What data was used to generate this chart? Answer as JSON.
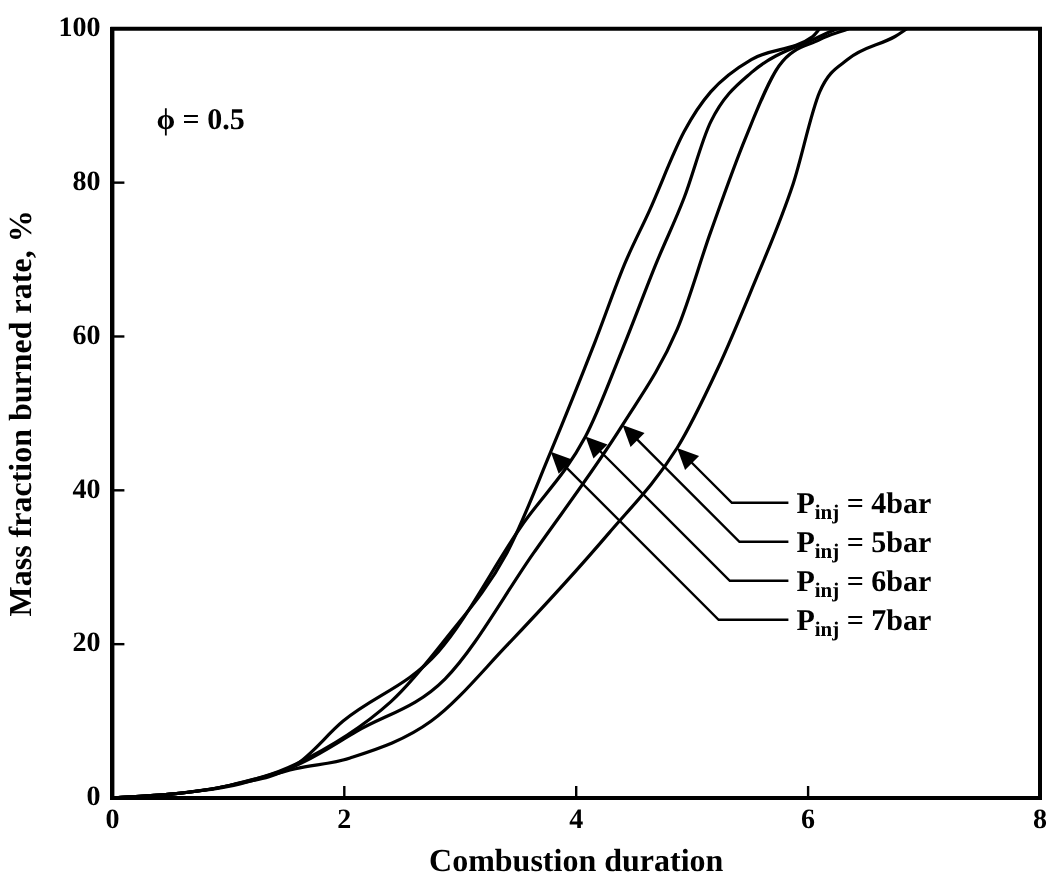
{
  "chart_data": {
    "type": "line",
    "xlabel": "Combustion duration",
    "ylabel": "Mass fraction burned rate, %",
    "xlim": [
      0,
      8
    ],
    "xticks": [
      0,
      2,
      4,
      6,
      8
    ],
    "ylim": [
      0,
      100
    ],
    "yticks": [
      0,
      20,
      40,
      60,
      80,
      100
    ],
    "grid": false,
    "legend": false,
    "marker": "none",
    "line_style": "solid",
    "series": [
      {
        "color": "#000000",
        "x": [
          0,
          0.5,
          1,
          1.58,
          2.05,
          2.75,
          3.4,
          4.28,
          4.87,
          5.22,
          5.51,
          5.87,
          6.1,
          6.34,
          6.75,
          6.85
        ],
        "values": [
          0,
          0.5,
          1.5,
          3.8,
          5.2,
          10,
          19.8,
          34.4,
          45.5,
          55.8,
          66,
          79.8,
          91.8,
          96,
          99,
          100
        ]
      },
      {
        "color": "#000000",
        "x": [
          0,
          0.5,
          1,
          1.58,
          2.11,
          2.87,
          3.63,
          4.4,
          4.87,
          5.16,
          5.46,
          5.75,
          6.1,
          6.35
        ],
        "values": [
          0,
          0.5,
          1.6,
          4.2,
          8.7,
          15.5,
          31.8,
          48.5,
          60.9,
          73.6,
          85.8,
          95.2,
          98.6,
          100
        ]
      },
      {
        "color": "#000000",
        "x": [
          0,
          0.5,
          1,
          1.58,
          1.99,
          2.81,
          3.52,
          4.08,
          4.4,
          4.69,
          4.93,
          5.16,
          5.51,
          6.1,
          6.25
        ],
        "values": [
          0,
          0.5,
          1.6,
          4.3,
          10,
          19,
          35.2,
          47,
          58.4,
          69.5,
          78,
          87.9,
          94.3,
          99,
          100
        ]
      },
      {
        "color": "#000000",
        "x": [
          0,
          0.5,
          1,
          1.58,
          2.4,
          2.87,
          3.4,
          3.78,
          4.16,
          4.42,
          4.63,
          4.93,
          5.16,
          5.51,
          6.04,
          6.1
        ],
        "values": [
          0,
          0.5,
          1.6,
          4.4,
          12.5,
          20.6,
          31.8,
          45,
          59.2,
          69.5,
          76.3,
          86.6,
          91.8,
          96,
          99,
          100
        ]
      }
    ],
    "annotations": [
      "ϕ = 0.5",
      {
        "text": "P$_{inj}$ = 4bar",
        "x": 4.87,
        "y": 45.5
      },
      {
        "text": "P$_{inj}$ = 5bar",
        "x": 4.4,
        "y": 48.5
      },
      {
        "text": "P$_{inj}$ = 6bar",
        "x": 4.08,
        "y": 47
      },
      {
        "text": "P$_{inj}$ = 7bar",
        "x": 3.78,
        "y": 45
      }
    ]
  }
}
